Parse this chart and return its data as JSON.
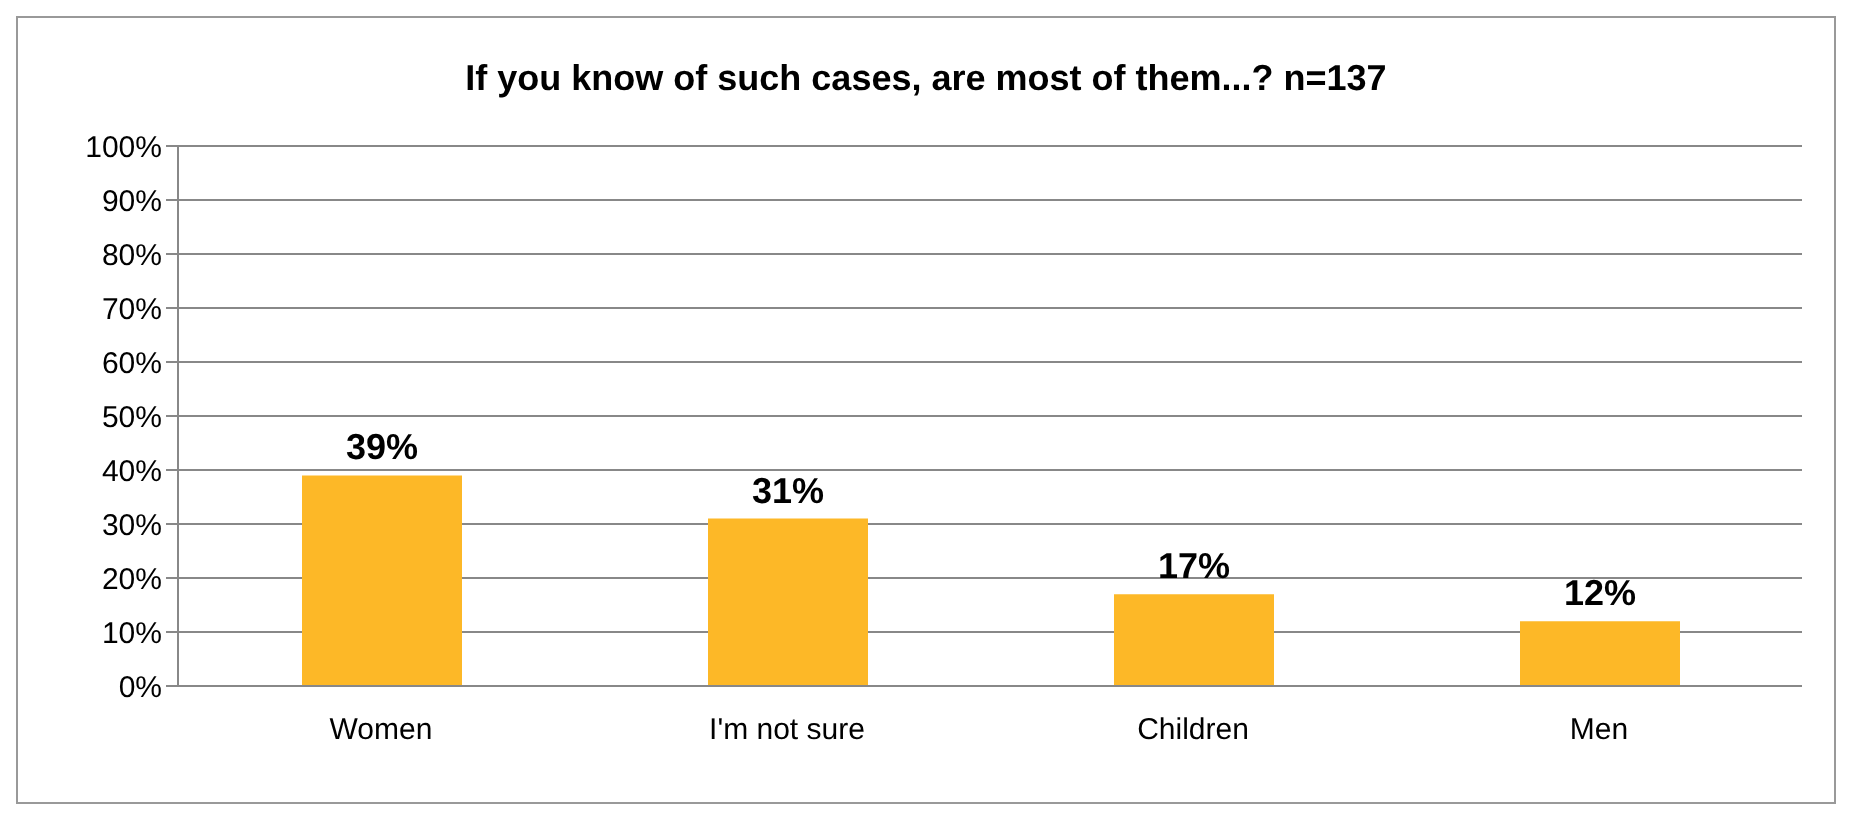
{
  "chart_data": {
    "type": "bar",
    "title": "If you know of such cases, are most of them...? n=137",
    "categories": [
      "Women",
      "I'm not sure",
      "Children",
      "Men"
    ],
    "values": [
      39,
      31,
      17,
      12
    ],
    "value_labels": [
      "39%",
      "31%",
      "17%",
      "12%"
    ],
    "color": "#fdb827",
    "ylim": [
      0,
      100
    ],
    "yticks": [
      {
        "value": 0,
        "label": "0%"
      },
      {
        "value": 10,
        "label": "10%"
      },
      {
        "value": 20,
        "label": "20%"
      },
      {
        "value": 30,
        "label": "30%"
      },
      {
        "value": 40,
        "label": "40%"
      },
      {
        "value": 50,
        "label": "50%"
      },
      {
        "value": 60,
        "label": "60%"
      },
      {
        "value": 70,
        "label": "70%"
      },
      {
        "value": 80,
        "label": "80%"
      },
      {
        "value": 90,
        "label": "90%"
      },
      {
        "value": 100,
        "label": "100%"
      }
    ],
    "grid": "y",
    "legend": false
  }
}
